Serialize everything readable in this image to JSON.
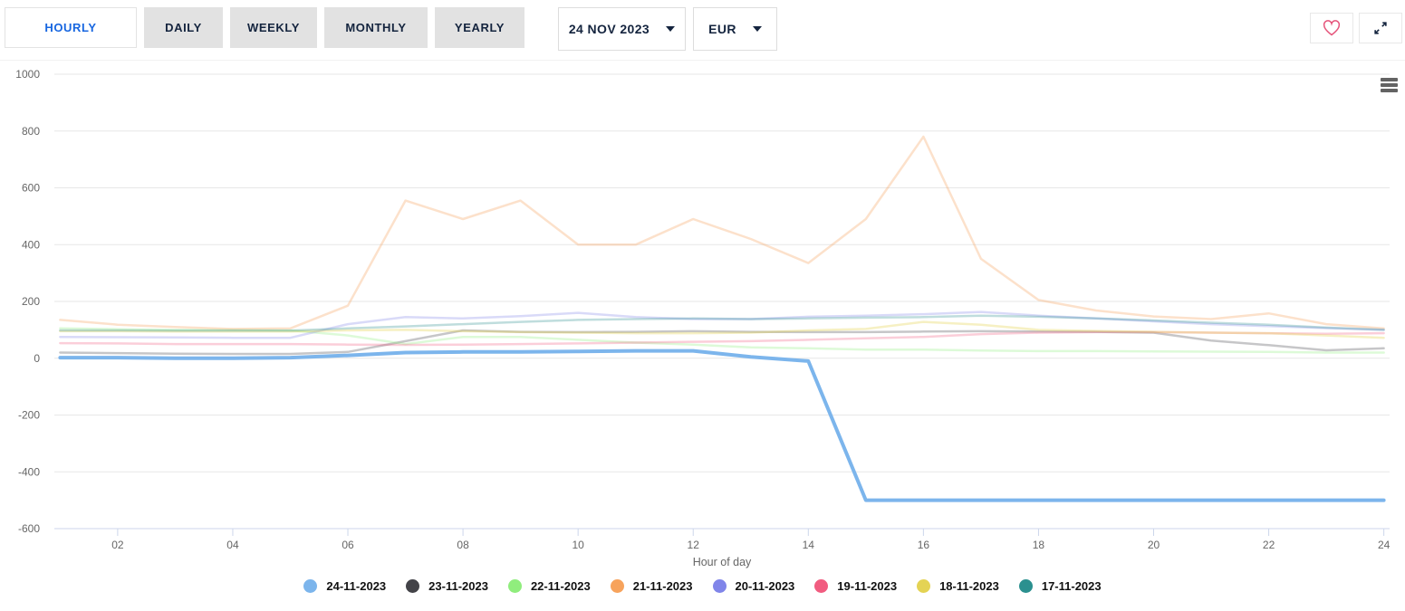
{
  "toolbar": {
    "tabs": [
      {
        "label": "HOURLY",
        "active": true
      },
      {
        "label": "DAILY",
        "active": false
      },
      {
        "label": "WEEKLY",
        "active": false
      },
      {
        "label": "MONTHLY",
        "active": false
      },
      {
        "label": "YEARLY",
        "active": false
      }
    ],
    "date_select": {
      "value": "24 NOV 2023",
      "icon": "chevron-down-icon"
    },
    "currency_select": {
      "value": "EUR",
      "icon": "chevron-down-icon"
    },
    "favorite_button": {
      "icon": "heart-icon"
    },
    "fullscreen_button": {
      "icon": "fullscreen-expand-icon"
    }
  },
  "chart": {
    "export_menu_icon": "hamburger-menu-icon"
  },
  "colors": {
    "accent_blue": "#1766e0",
    "navy_text": "#14243e",
    "heart_pink": "#e5537a",
    "tab_gray": "#e2e2e2",
    "grid_line": "#e7e7e7",
    "axis_line": "#ccd6eb",
    "axis_text": "#666666"
  },
  "chart_data": {
    "type": "line",
    "title": "",
    "xlabel": "Hour of day",
    "ylabel": "",
    "x": [
      1,
      2,
      3,
      4,
      5,
      6,
      7,
      8,
      9,
      10,
      11,
      12,
      13,
      14,
      15,
      16,
      17,
      18,
      19,
      20,
      21,
      22,
      23,
      24
    ],
    "xticks": [
      2,
      4,
      6,
      8,
      10,
      12,
      14,
      16,
      18,
      20,
      22,
      24
    ],
    "yticks": [
      1000,
      800,
      600,
      400,
      200,
      0,
      -200,
      -400,
      -600
    ],
    "ylim": [
      -600,
      1000
    ],
    "grid": "horizontal",
    "legend_position": "bottom",
    "series": [
      {
        "name": "24-11-2023",
        "color": "#7cb5ec",
        "selected": true,
        "opacity": 1,
        "values": [
          2,
          2,
          0,
          0,
          2,
          10,
          20,
          22,
          22,
          24,
          26,
          26,
          5,
          -10,
          -500,
          -500,
          -500,
          -500,
          -500,
          -500,
          -500,
          -500,
          -500,
          -500
        ]
      },
      {
        "name": "23-11-2023",
        "color": "#434348",
        "selected": false,
        "opacity": 0.3,
        "values": [
          20,
          18,
          16,
          15,
          15,
          22,
          60,
          98,
          93,
          92,
          93,
          95,
          93,
          92,
          92,
          94,
          95,
          94,
          93,
          90,
          62,
          46,
          28,
          35
        ]
      },
      {
        "name": "22-11-2023",
        "color": "#90ed7d",
        "selected": false,
        "opacity": 0.3,
        "values": [
          105,
          102,
          100,
          100,
          98,
          80,
          50,
          75,
          75,
          65,
          55,
          48,
          38,
          35,
          30,
          30,
          27,
          25,
          25,
          24,
          23,
          22,
          20,
          20
        ]
      },
      {
        "name": "21-11-2023",
        "color": "#f7a35c",
        "selected": false,
        "opacity": 0.32,
        "values": [
          135,
          118,
          110,
          103,
          105,
          185,
          555,
          490,
          555,
          400,
          400,
          490,
          420,
          335,
          490,
          780,
          350,
          205,
          168,
          147,
          138,
          158,
          120,
          105
        ]
      },
      {
        "name": "20-11-2023",
        "color": "#8085e9",
        "selected": false,
        "opacity": 0.3,
        "values": [
          75,
          74,
          73,
          72,
          72,
          120,
          145,
          140,
          148,
          160,
          145,
          138,
          138,
          146,
          150,
          155,
          163,
          150,
          140,
          130,
          120,
          113,
          106,
          100
        ]
      },
      {
        "name": "19-11-2023",
        "color": "#f15c80",
        "selected": false,
        "opacity": 0.3,
        "values": [
          53,
          52,
          50,
          50,
          50,
          48,
          47,
          48,
          50,
          52,
          55,
          58,
          60,
          65,
          70,
          75,
          85,
          90,
          92,
          92,
          90,
          88,
          86,
          88
        ]
      },
      {
        "name": "18-11-2023",
        "color": "#e4d354",
        "selected": false,
        "opacity": 0.35,
        "values": [
          95,
          95,
          94,
          94,
          94,
          98,
          100,
          95,
          92,
          90,
          88,
          88,
          90,
          98,
          103,
          128,
          118,
          100,
          96,
          93,
          90,
          88,
          80,
          72
        ]
      },
      {
        "name": "17-11-2023",
        "color": "#2b908f",
        "selected": false,
        "opacity": 0.3,
        "values": [
          98,
          98,
          97,
          97,
          97,
          105,
          112,
          120,
          128,
          135,
          138,
          140,
          138,
          140,
          143,
          145,
          150,
          146,
          140,
          133,
          125,
          118,
          108,
          100
        ]
      }
    ]
  }
}
